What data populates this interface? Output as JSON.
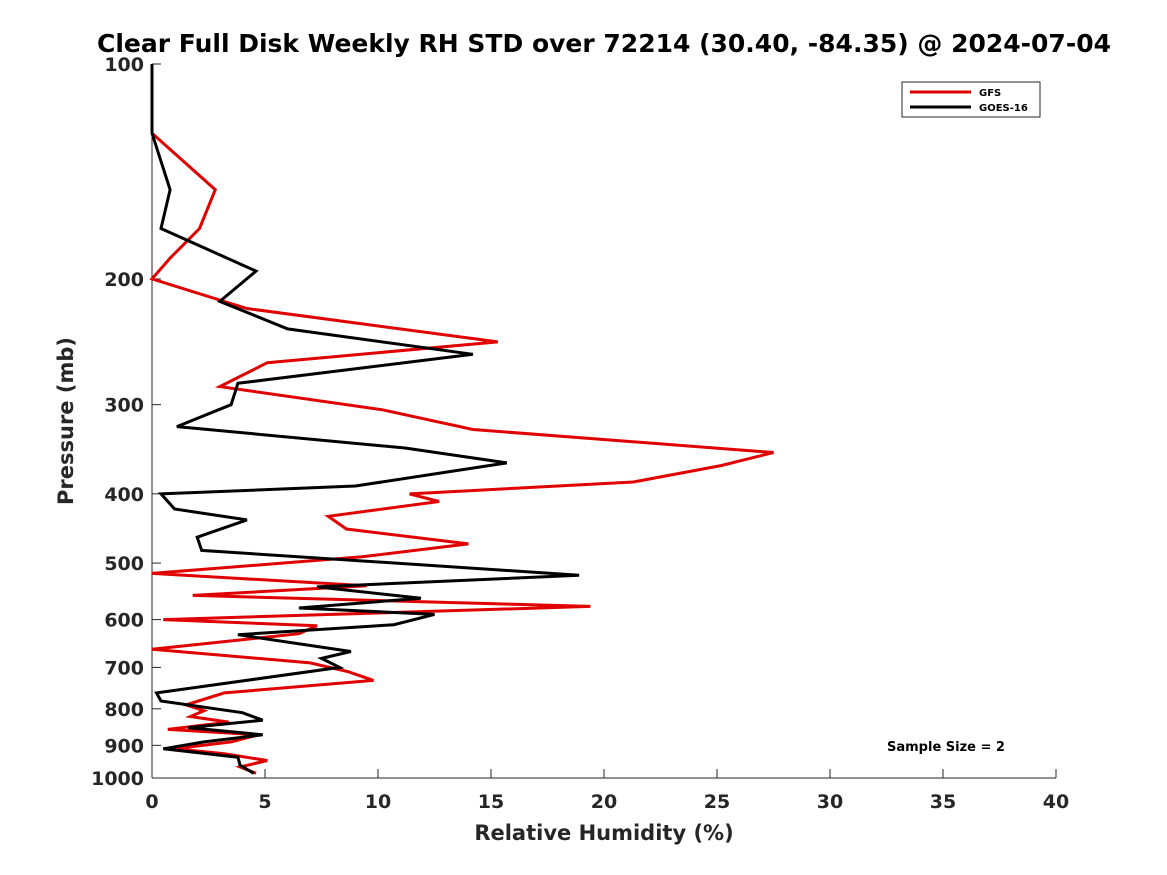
{
  "chart_data": {
    "type": "line",
    "title": "Clear Full Disk Weekly RH STD over 72214 (30.40, -84.35) @ 2024-07-04",
    "xlabel": "Relative Humidity (%)",
    "ylabel": "Pressure (mb)",
    "xlim": [
      0,
      40
    ],
    "ylim": [
      100,
      1000
    ],
    "yscale": "log",
    "y_reversed": true,
    "grid": false,
    "legend_position": "top-right",
    "xticks": [
      0,
      5,
      10,
      15,
      20,
      25,
      30,
      35,
      40
    ],
    "xtick_labels": [
      "0",
      "5",
      "10",
      "15",
      "20",
      "25",
      "30",
      "35",
      "40"
    ],
    "yticks": [
      100,
      200,
      300,
      400,
      500,
      600,
      700,
      800,
      900,
      1000
    ],
    "ytick_labels": [
      "100",
      "200",
      "300",
      "400",
      "500",
      "600",
      "700",
      "800",
      "900",
      "1000"
    ],
    "annotation": "Sample Size = 2",
    "series": [
      {
        "name": "GFS",
        "color": "#e00000",
        "points": [
          [
            0,
            100
          ],
          [
            0,
            125
          ],
          [
            2.8,
            150
          ],
          [
            2.1,
            170
          ],
          [
            0.8,
            187
          ],
          [
            0,
            200
          ],
          [
            4.2,
            220
          ],
          [
            15.3,
            245
          ],
          [
            5.1,
            262
          ],
          [
            3.0,
            283
          ],
          [
            10.2,
            305
          ],
          [
            14.2,
            325
          ],
          [
            27.5,
            350
          ],
          [
            25.2,
            365
          ],
          [
            21.3,
            385
          ],
          [
            11.4,
            400
          ],
          [
            12.7,
            410
          ],
          [
            7.8,
            430
          ],
          [
            8.6,
            448
          ],
          [
            14.0,
            470
          ],
          [
            9.3,
            490
          ],
          [
            0,
            517
          ],
          [
            9.5,
            538
          ],
          [
            1.8,
            555
          ],
          [
            19.4,
            575
          ],
          [
            0.5,
            600
          ],
          [
            7.3,
            612
          ],
          [
            6.5,
            628
          ],
          [
            0,
            660
          ],
          [
            7.0,
            690
          ],
          [
            8.7,
            710
          ],
          [
            9.8,
            730
          ],
          [
            3.2,
            760
          ],
          [
            1.5,
            790
          ],
          [
            2.3,
            805
          ],
          [
            1.7,
            820
          ],
          [
            3.4,
            835
          ],
          [
            0.7,
            855
          ],
          [
            4.7,
            870
          ],
          [
            3.5,
            890
          ],
          [
            1.0,
            910
          ],
          [
            3.2,
            925
          ],
          [
            5.1,
            945
          ],
          [
            3.9,
            965
          ],
          [
            4.6,
            985
          ]
        ]
      },
      {
        "name": "GOES-16",
        "color": "#000000",
        "points": [
          [
            0,
            100
          ],
          [
            0,
            125
          ],
          [
            0.8,
            150
          ],
          [
            0.4,
            170
          ],
          [
            4.6,
            195
          ],
          [
            3.0,
            215
          ],
          [
            6.0,
            235
          ],
          [
            14.2,
            255
          ],
          [
            3.8,
            280
          ],
          [
            3.5,
            300
          ],
          [
            1.1,
            322
          ],
          [
            11.2,
            345
          ],
          [
            15.7,
            362
          ],
          [
            9.0,
            390
          ],
          [
            0.4,
            400
          ],
          [
            1.0,
            420
          ],
          [
            4.2,
            435
          ],
          [
            2.0,
            460
          ],
          [
            2.2,
            480
          ],
          [
            18.9,
            520
          ],
          [
            7.3,
            540
          ],
          [
            11.9,
            560
          ],
          [
            6.5,
            578
          ],
          [
            12.5,
            590
          ],
          [
            10.7,
            610
          ],
          [
            3.8,
            630
          ],
          [
            8.8,
            665
          ],
          [
            7.5,
            680
          ],
          [
            8.3,
            700
          ],
          [
            0.2,
            760
          ],
          [
            0.4,
            780
          ],
          [
            4.0,
            810
          ],
          [
            4.9,
            830
          ],
          [
            1.6,
            850
          ],
          [
            4.9,
            870
          ],
          [
            2.3,
            890
          ],
          [
            0.5,
            910
          ],
          [
            3.8,
            935
          ],
          [
            3.9,
            960
          ],
          [
            4.5,
            985
          ]
        ]
      }
    ]
  }
}
